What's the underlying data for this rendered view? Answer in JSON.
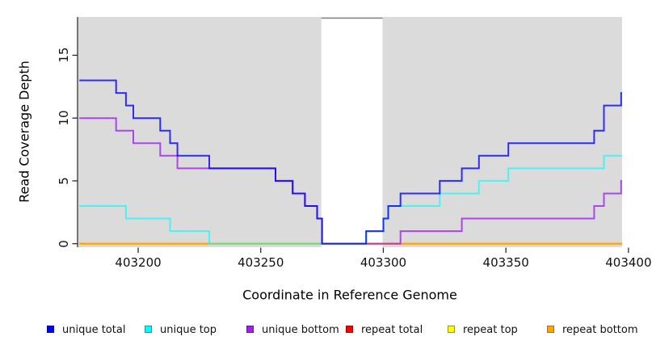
{
  "chart_data": {
    "type": "line",
    "subtype": "step-after",
    "title": "",
    "xlabel": "Coordinate in Reference Genome",
    "ylabel": "Read Coverage Depth",
    "xlim": [
      403176,
      403397
    ],
    "ylim": [
      0,
      18
    ],
    "x_ticks": [
      403200,
      403250,
      403300,
      403350,
      403400
    ],
    "x_tick_labels": [
      "403200",
      "403250",
      "403300",
      "403350",
      "403400"
    ],
    "y_ticks": [
      0,
      5,
      10,
      15
    ],
    "y_tick_labels": [
      "0",
      "5",
      "10",
      "15"
    ],
    "grid": "off",
    "plot_background": "#DBDBDB",
    "gap_band": {
      "x_from": 403275,
      "x_to": 403300,
      "color": "#FFFFFF",
      "top_border": "#8C8C8C"
    },
    "legend_position": "bottom",
    "series": [
      {
        "name": "unique total",
        "color": "#0000FF",
        "swatch_border": "#0000B4",
        "steps": [
          [
            403176,
            13
          ],
          [
            403191,
            12
          ],
          [
            403195,
            11
          ],
          [
            403198,
            10
          ],
          [
            403209,
            9
          ],
          [
            403213,
            8
          ],
          [
            403216,
            7
          ],
          [
            403229,
            6
          ],
          [
            403256,
            5
          ],
          [
            403263,
            4
          ],
          [
            403268,
            3
          ],
          [
            403273,
            2
          ],
          [
            403275,
            0
          ],
          [
            403293,
            1
          ],
          [
            403300,
            2
          ],
          [
            403302,
            3
          ],
          [
            403307,
            4
          ],
          [
            403323,
            5
          ],
          [
            403332,
            6
          ],
          [
            403339,
            7
          ],
          [
            403351,
            8
          ],
          [
            403386,
            9
          ],
          [
            403390,
            11
          ],
          [
            403397,
            12
          ]
        ]
      },
      {
        "name": "unique top",
        "color": "#00FFFF",
        "swatch_border": "#00A0A8",
        "steps": [
          [
            403176,
            3
          ],
          [
            403195,
            2
          ],
          [
            403213,
            1
          ],
          [
            403229,
            0
          ],
          [
            403293,
            1
          ],
          [
            403300,
            2
          ],
          [
            403302,
            3
          ],
          [
            403323,
            4
          ],
          [
            403339,
            5
          ],
          [
            403351,
            6
          ],
          [
            403390,
            7
          ]
        ]
      },
      {
        "name": "unique bottom",
        "color": "#A020F0",
        "swatch_border": "#6E10A8",
        "steps": [
          [
            403176,
            10
          ],
          [
            403191,
            9
          ],
          [
            403198,
            8
          ],
          [
            403209,
            7
          ],
          [
            403216,
            6
          ],
          [
            403256,
            5
          ],
          [
            403263,
            4
          ],
          [
            403268,
            3
          ],
          [
            403273,
            2
          ],
          [
            403275,
            0
          ],
          [
            403307,
            1
          ],
          [
            403332,
            2
          ],
          [
            403386,
            3
          ],
          [
            403390,
            4
          ],
          [
            403397,
            5
          ]
        ]
      },
      {
        "name": "repeat total",
        "color": "#FF0000",
        "swatch_border": "#A80000",
        "steps": [
          [
            403176,
            0
          ]
        ]
      },
      {
        "name": "repeat top",
        "color": "#FFFF00",
        "swatch_border": "#989800",
        "steps": [
          [
            403176,
            0
          ]
        ]
      },
      {
        "name": "repeat bottom",
        "color": "#FFA500",
        "swatch_border": "#B07300",
        "steps": [
          [
            403176,
            0
          ]
        ]
      }
    ],
    "legend": [
      {
        "label": "unique total",
        "color": "#0000FF"
      },
      {
        "label": "unique top",
        "color": "#00FFFF"
      },
      {
        "label": "unique bottom",
        "color": "#A020F0"
      },
      {
        "label": "repeat total",
        "color": "#FF0000"
      },
      {
        "label": "repeat top",
        "color": "#FFFF00"
      },
      {
        "label": "repeat bottom",
        "color": "#FFA500"
      }
    ]
  }
}
